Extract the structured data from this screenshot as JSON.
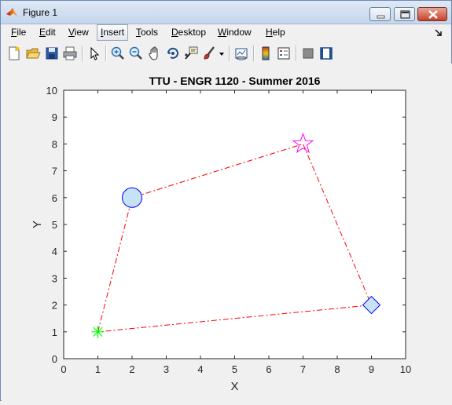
{
  "window": {
    "title": "Figure 1"
  },
  "menu": [
    {
      "key": "F",
      "rest": "ile"
    },
    {
      "key": "E",
      "rest": "dit"
    },
    {
      "key": "V",
      "rest": "iew"
    },
    {
      "key": "I",
      "rest": "nsert"
    },
    {
      "key": "T",
      "rest": "ools"
    },
    {
      "key": "D",
      "rest": "esktop"
    },
    {
      "key": "W",
      "rest": "indow"
    },
    {
      "key": "H",
      "rest": "elp"
    }
  ],
  "toolbar_icons": [
    "new-figure-icon",
    "open-file-icon",
    "save-icon",
    "print-icon",
    "edit-plot-arrow-icon",
    "zoom-in-icon",
    "zoom-out-icon",
    "pan-hand-icon",
    "rotate-3d-icon",
    "data-cursor-icon",
    "brush-icon",
    "brush-dropdown-icon",
    "link-plot-icon",
    "insert-colorbar-icon",
    "insert-legend-icon",
    "hide-plot-tools-icon",
    "show-plot-tools-icon"
  ],
  "chart_data": {
    "type": "line",
    "title": "TTU - ENGR 1120 - Summer 2016",
    "xlabel": "X",
    "ylabel": "Y",
    "xlim": [
      0,
      10
    ],
    "ylim": [
      0,
      10
    ],
    "x_ticks": [
      "0",
      "1",
      "2",
      "3",
      "4",
      "5",
      "6",
      "7",
      "8",
      "9",
      "10"
    ],
    "y_ticks": [
      "0",
      "1",
      "2",
      "3",
      "4",
      "5",
      "6",
      "7",
      "8",
      "9",
      "10"
    ],
    "grid": false,
    "line": {
      "style": "dash-dot",
      "color": "#ff0000",
      "x": [
        1,
        2,
        7,
        9,
        1
      ],
      "y": [
        1,
        6,
        8,
        2,
        1
      ]
    },
    "markers": [
      {
        "x": 1,
        "y": 1,
        "shape": "asterisk",
        "edge": "#00ff00",
        "fill": "none"
      },
      {
        "x": 2,
        "y": 6,
        "shape": "circle",
        "edge": "#0000ff",
        "fill": "#c6e2f7"
      },
      {
        "x": 7,
        "y": 8,
        "shape": "pentagram",
        "edge": "#ff00ff",
        "fill": "none"
      },
      {
        "x": 9,
        "y": 2,
        "shape": "diamond",
        "edge": "#0000ff",
        "fill": "#c6e2f7"
      }
    ]
  }
}
